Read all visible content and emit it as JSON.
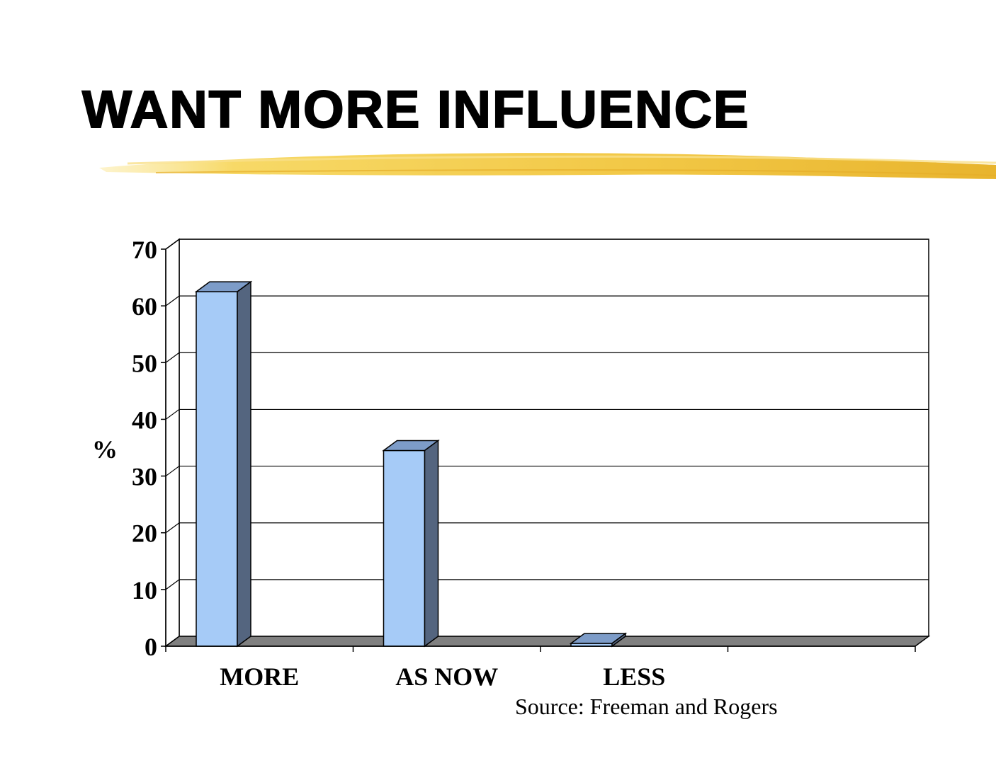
{
  "slide": {
    "title": "WANT MORE INFLUENCE",
    "source": "Source: Freeman and Rogers"
  },
  "colors": {
    "bar_front": "#a6cbf7",
    "bar_side": "#54657f",
    "bar_top": "#7d9cc8",
    "floor": "#808080",
    "brush": "#f0c43c"
  },
  "chart_data": {
    "type": "bar",
    "categories": [
      "MORE",
      "AS NOW",
      "LESS",
      ""
    ],
    "values": [
      62.5,
      34.5,
      0.5,
      null
    ],
    "ylabel": "%",
    "ylim": [
      0,
      70
    ],
    "yticks": [
      0,
      10,
      20,
      30,
      40,
      50,
      60,
      70
    ],
    "grid": true,
    "style": "3d-column"
  }
}
